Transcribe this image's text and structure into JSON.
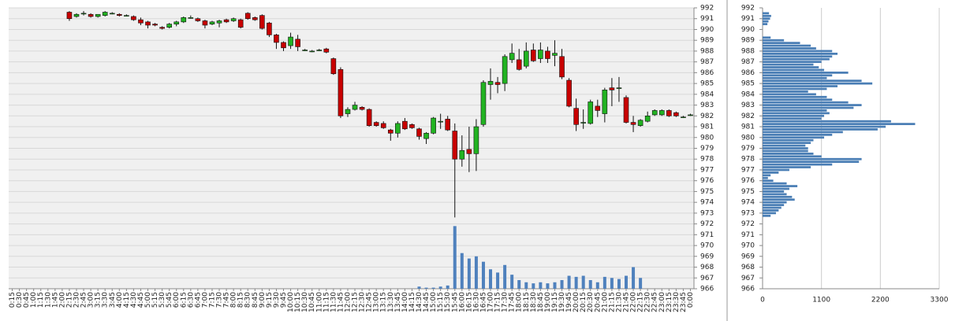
{
  "chart_data": [
    {
      "type": "candlestick",
      "categories": [
        "0:15",
        "0:30",
        "0:45",
        "1:00",
        "1:15",
        "1:30",
        "1:45",
        "2:00",
        "2:15",
        "2:30",
        "2:45",
        "3:00",
        "3:15",
        "3:30",
        "3:45",
        "4:00",
        "4:15",
        "4:30",
        "4:45",
        "5:00",
        "5:15",
        "5:30",
        "5:45",
        "6:00",
        "6:15",
        "6:30",
        "6:45",
        "7:00",
        "7:15",
        "7:30",
        "7:45",
        "8:00",
        "8:15",
        "8:30",
        "8:45",
        "9:00",
        "9:15",
        "9:30",
        "9:45",
        "10:00",
        "10:15",
        "10:30",
        "10:45",
        "11:00",
        "11:15",
        "11:30",
        "11:45",
        "12:00",
        "12:15",
        "12:30",
        "12:45",
        "13:00",
        "13:15",
        "13:30",
        "13:45",
        "14:00",
        "14:15",
        "14:30",
        "14:45",
        "15:00",
        "15:15",
        "15:30",
        "15:45",
        "16:00",
        "16:15",
        "16:30",
        "16:45",
        "17:00",
        "17:15",
        "17:30",
        "17:45",
        "18:00",
        "18:15",
        "18:30",
        "18:45",
        "19:00",
        "19:15",
        "19:30",
        "19:45",
        "20:00",
        "20:15",
        "20:30",
        "20:45",
        "21:00",
        "21:15",
        "21:30",
        "21:45",
        "22:00",
        "22:15",
        "22:30",
        "22:45",
        "23:00",
        "23:15",
        "23:30",
        "23:45",
        "0:00"
      ],
      "open": [
        null,
        null,
        null,
        null,
        null,
        null,
        null,
        null,
        991.6,
        991.2,
        991.5,
        991.4,
        991.2,
        991.3,
        991.5,
        991.4,
        991.3,
        991.2,
        990.9,
        990.7,
        990.5,
        990.2,
        990.2,
        990.5,
        990.7,
        991.1,
        991.0,
        990.8,
        990.5,
        990.6,
        990.9,
        990.8,
        990.9,
        991.5,
        991.1,
        991.3,
        990.6,
        989.5,
        988.8,
        988.5,
        989.1,
        988.1,
        988.0,
        988.1,
        988.2,
        987.3,
        986.3,
        982.2,
        982.6,
        982.8,
        982.6,
        981.4,
        981.3,
        980.7,
        980.4,
        981.5,
        981.2,
        980.8,
        979.9,
        980.4,
        981.5,
        981.7,
        980.6,
        978.0,
        978.9,
        978.5,
        981.2,
        984.9,
        985.1,
        985.0,
        987.2,
        987.2,
        986.6,
        988.1,
        987.3,
        988.0,
        987.6,
        987.5,
        985.3,
        982.7,
        981.4,
        981.3,
        982.9,
        982.2,
        984.6,
        984.6,
        983.7,
        981.4,
        981.1,
        981.5,
        982.1,
        982.1,
        982.5,
        982.3,
        981.9,
        982.1
      ],
      "high": [
        null,
        null,
        null,
        null,
        null,
        null,
        null,
        null,
        991.7,
        991.5,
        991.7,
        991.5,
        991.4,
        991.7,
        991.6,
        991.5,
        991.4,
        991.3,
        991.1,
        990.8,
        990.6,
        990.3,
        990.6,
        990.8,
        991.2,
        991.3,
        991.1,
        990.9,
        990.8,
        990.9,
        991.0,
        991.1,
        991.0,
        991.6,
        991.2,
        991.4,
        990.7,
        989.6,
        988.9,
        989.7,
        989.5,
        988.2,
        988.1,
        988.2,
        988.3,
        987.4,
        986.5,
        982.8,
        983.3,
        982.9,
        982.7,
        981.5,
        981.5,
        980.8,
        981.5,
        981.8,
        981.3,
        980.9,
        980.5,
        981.9,
        982.2,
        982.0,
        981.3,
        980.2,
        981.0,
        981.7,
        985.3,
        986.4,
        985.6,
        987.7,
        988.7,
        988.2,
        988.8,
        988.7,
        988.8,
        988.4,
        989.0,
        988.2,
        985.5,
        983.6,
        982.6,
        983.5,
        983.5,
        984.6,
        985.5,
        985.6,
        983.9,
        982.0,
        981.7,
        982.4,
        982.6,
        982.6,
        982.6,
        982.4,
        982.0,
        982.2
      ],
      "low": [
        null,
        null,
        null,
        null,
        null,
        null,
        null,
        null,
        990.8,
        991.1,
        991.3,
        991.1,
        991.1,
        991.2,
        991.4,
        991.2,
        991.2,
        990.8,
        990.4,
        990.1,
        990.3,
        990.0,
        990.1,
        990.3,
        990.6,
        991.0,
        990.7,
        990.1,
        990.4,
        990.2,
        990.6,
        990.7,
        990.1,
        990.9,
        990.8,
        990.0,
        989.3,
        988.2,
        988.0,
        988.2,
        988.0,
        988.0,
        987.9,
        988.0,
        987.8,
        985.8,
        981.8,
        981.9,
        982.5,
        982.5,
        981.0,
        981.0,
        980.8,
        979.7,
        980.0,
        980.7,
        980.8,
        979.8,
        979.4,
        980.3,
        980.8,
        980.6,
        972.6,
        977.3,
        976.8,
        976.9,
        981.0,
        983.5,
        984.1,
        984.3,
        986.9,
        986.2,
        986.4,
        987.0,
        986.9,
        986.9,
        986.6,
        985.4,
        982.8,
        980.6,
        980.8,
        981.2,
        981.9,
        981.4,
        982.9,
        983.3,
        981.3,
        980.5,
        981.0,
        981.4,
        982.0,
        982.0,
        981.9,
        981.9,
        981.8,
        982.0
      ],
      "close": [
        null,
        null,
        null,
        null,
        null,
        null,
        null,
        null,
        991.0,
        991.4,
        991.5,
        991.2,
        991.4,
        991.6,
        991.5,
        991.3,
        991.3,
        990.9,
        990.6,
        990.4,
        990.4,
        990.1,
        990.5,
        990.7,
        991.1,
        991.1,
        990.8,
        990.4,
        990.7,
        990.8,
        990.7,
        991.0,
        990.2,
        991.0,
        990.9,
        990.1,
        989.5,
        988.8,
        988.3,
        989.3,
        988.4,
        988.1,
        988.0,
        988.1,
        987.9,
        985.9,
        982.0,
        982.6,
        983.0,
        982.6,
        981.1,
        981.1,
        980.9,
        980.4,
        981.3,
        980.8,
        980.9,
        980.1,
        980.4,
        981.8,
        981.5,
        980.7,
        978.0,
        978.8,
        978.5,
        981.0,
        985.1,
        985.2,
        984.9,
        987.5,
        987.8,
        986.3,
        988.0,
        987.1,
        988.1,
        987.3,
        987.8,
        985.6,
        982.9,
        981.2,
        981.4,
        983.3,
        982.5,
        984.4,
        984.4,
        984.6,
        981.4,
        981.2,
        981.6,
        982.0,
        982.5,
        982.5,
        982.0,
        982.0,
        981.9,
        982.1
      ],
      "volume": [
        null,
        null,
        null,
        null,
        null,
        null,
        null,
        null,
        null,
        null,
        null,
        null,
        null,
        null,
        null,
        null,
        null,
        null,
        null,
        null,
        null,
        null,
        null,
        null,
        null,
        null,
        null,
        null,
        null,
        null,
        null,
        null,
        null,
        null,
        null,
        null,
        null,
        null,
        null,
        null,
        null,
        null,
        null,
        null,
        null,
        null,
        null,
        null,
        null,
        null,
        null,
        null,
        null,
        null,
        null,
        null,
        null,
        966.2,
        966.1,
        966.1,
        966.2,
        966.3,
        971.8,
        969.3,
        968.8,
        969.0,
        968.5,
        967.8,
        967.5,
        968.2,
        967.3,
        966.8,
        966.6,
        966.5,
        966.6,
        966.5,
        966.6,
        966.8,
        967.2,
        967.1,
        967.2,
        966.8,
        966.6,
        967.1,
        967.0,
        966.9,
        967.2,
        968.0,
        967.0,
        null,
        null,
        null,
        null,
        null,
        null,
        null
      ],
      "up_color": "#22b322",
      "down_color": "#c80000",
      "volume_color": "#4f81bd",
      "ylim": [
        966,
        992
      ],
      "yticks": [
        966,
        967,
        968,
        969,
        970,
        971,
        972,
        973,
        974,
        975,
        976,
        977,
        978,
        979,
        980,
        981,
        982,
        983,
        984,
        985,
        986,
        987,
        988,
        989,
        990,
        991,
        992
      ],
      "grid": true
    },
    {
      "type": "barh",
      "y": [
        991.5,
        991.25,
        991.0,
        990.75,
        990.5,
        989.25,
        989.0,
        988.75,
        988.5,
        988.25,
        988.0,
        987.75,
        987.5,
        987.25,
        987.0,
        986.75,
        986.5,
        986.25,
        986.0,
        985.75,
        985.5,
        985.25,
        985.0,
        984.75,
        984.5,
        984.25,
        984.0,
        983.75,
        983.5,
        983.25,
        983.0,
        982.75,
        982.5,
        982.25,
        982.0,
        981.75,
        981.5,
        981.25,
        981.0,
        980.75,
        980.5,
        980.25,
        980.0,
        979.75,
        979.5,
        979.25,
        979.0,
        978.75,
        978.5,
        978.25,
        978.0,
        977.75,
        977.5,
        977.25,
        977.0,
        976.75,
        976.5,
        976.25,
        976.0,
        975.75,
        975.5,
        975.25,
        975.0,
        974.75,
        974.5,
        974.25,
        974.0,
        973.75,
        973.5,
        973.25,
        973.0,
        972.75
      ],
      "values": [
        120,
        160,
        140,
        110,
        90,
        150,
        400,
        700,
        900,
        1000,
        1300,
        1400,
        1300,
        1250,
        1100,
        950,
        1050,
        1150,
        1600,
        1300,
        1200,
        1850,
        2050,
        1400,
        1200,
        850,
        1000,
        1200,
        1300,
        1600,
        1850,
        1700,
        1200,
        1250,
        1150,
        1100,
        2400,
        2850,
        2300,
        2150,
        1500,
        1300,
        1150,
        950,
        900,
        800,
        850,
        850,
        950,
        1100,
        1850,
        1800,
        1300,
        900,
        500,
        300,
        150,
        100,
        200,
        450,
        650,
        500,
        400,
        450,
        550,
        600,
        450,
        400,
        350,
        300,
        250,
        150
      ],
      "color": "#4a7eb5",
      "xlim": [
        0,
        3300
      ],
      "xticks": [
        0,
        1100,
        2200,
        3300
      ],
      "ylim": [
        966,
        992
      ],
      "yticks": [
        966,
        967,
        968,
        969,
        970,
        971,
        972,
        973,
        974,
        975,
        976,
        977,
        978,
        979,
        980,
        981,
        982,
        983,
        984,
        985,
        986,
        987,
        988,
        989,
        990,
        991,
        992
      ],
      "grid": true
    }
  ]
}
